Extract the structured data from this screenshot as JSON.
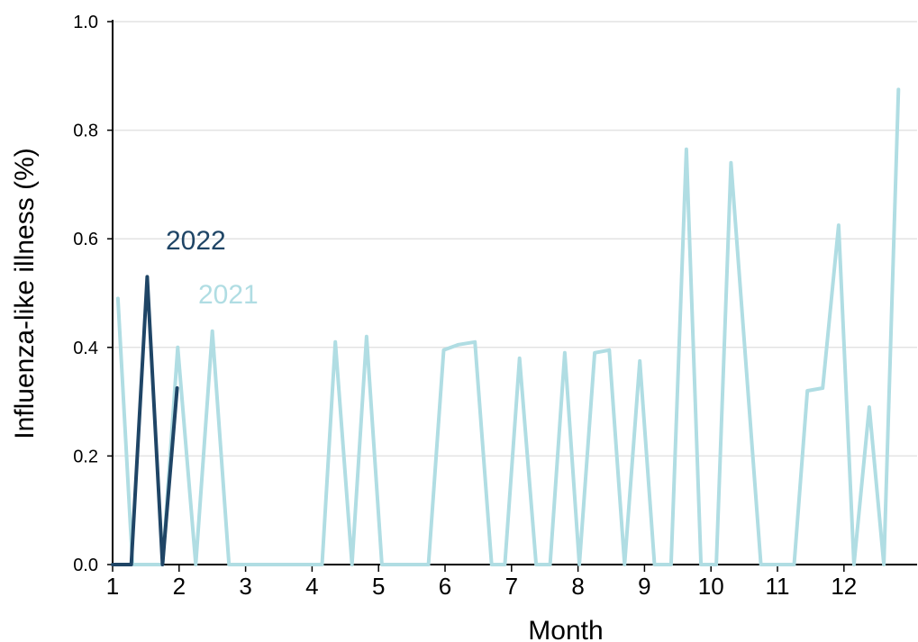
{
  "chart_data": {
    "type": "line",
    "xlabel": "Month",
    "ylabel": "Influenza-like illness (%)",
    "xlim": [
      1,
      13.1
    ],
    "ylim": [
      0,
      1.0
    ],
    "x_ticks": [
      1,
      2,
      3,
      4,
      5,
      6,
      7,
      8,
      9,
      10,
      11,
      12
    ],
    "x_tick_labels": [
      "1",
      "2",
      "3",
      "4",
      "5",
      "6",
      "7",
      "8",
      "9",
      "10",
      "11",
      "12"
    ],
    "y_ticks": [
      0,
      0.2,
      0.4,
      0.6,
      0.8,
      1.0
    ],
    "y_tick_labels": [
      "0.0",
      "0.2",
      "0.4",
      "0.6",
      "0.8",
      "1.0"
    ],
    "grid": "horizontal",
    "series": [
      {
        "name": "2021",
        "color": "#b0dde3",
        "points": [
          [
            1.08,
            0.49
          ],
          [
            1.3,
            0.0
          ],
          [
            1.75,
            0.0
          ],
          [
            1.98,
            0.4
          ],
          [
            2.25,
            0.0
          ],
          [
            2.5,
            0.43
          ],
          [
            2.75,
            0.0
          ],
          [
            4.15,
            0.0
          ],
          [
            4.35,
            0.41
          ],
          [
            4.6,
            0.0
          ],
          [
            4.82,
            0.42
          ],
          [
            5.05,
            0.0
          ],
          [
            5.75,
            0.0
          ],
          [
            5.98,
            0.395
          ],
          [
            6.2,
            0.405
          ],
          [
            6.45,
            0.41
          ],
          [
            6.7,
            0.0
          ],
          [
            6.9,
            0.0
          ],
          [
            7.12,
            0.38
          ],
          [
            7.37,
            0.0
          ],
          [
            7.58,
            0.0
          ],
          [
            7.8,
            0.39
          ],
          [
            8.02,
            0.0
          ],
          [
            8.25,
            0.39
          ],
          [
            8.47,
            0.395
          ],
          [
            8.7,
            0.0
          ],
          [
            8.93,
            0.375
          ],
          [
            9.15,
            0.0
          ],
          [
            9.4,
            0.0
          ],
          [
            9.63,
            0.765
          ],
          [
            9.85,
            0.0
          ],
          [
            10.08,
            0.0
          ],
          [
            10.3,
            0.74
          ],
          [
            10.75,
            0.0
          ],
          [
            11.25,
            0.0
          ],
          [
            11.45,
            0.32
          ],
          [
            11.68,
            0.325
          ],
          [
            11.92,
            0.625
          ],
          [
            12.15,
            0.0
          ],
          [
            12.38,
            0.29
          ],
          [
            12.6,
            0.0
          ],
          [
            12.82,
            0.875
          ]
        ]
      },
      {
        "name": "2022",
        "color": "#1f4566",
        "points": [
          [
            1.0,
            0.0
          ],
          [
            1.28,
            0.0
          ],
          [
            1.52,
            0.53
          ],
          [
            1.75,
            0.0
          ],
          [
            1.97,
            0.325
          ]
        ]
      }
    ],
    "annotations": [
      {
        "text": "2022",
        "series": "2022"
      },
      {
        "text": "2021",
        "series": "2021"
      }
    ]
  }
}
